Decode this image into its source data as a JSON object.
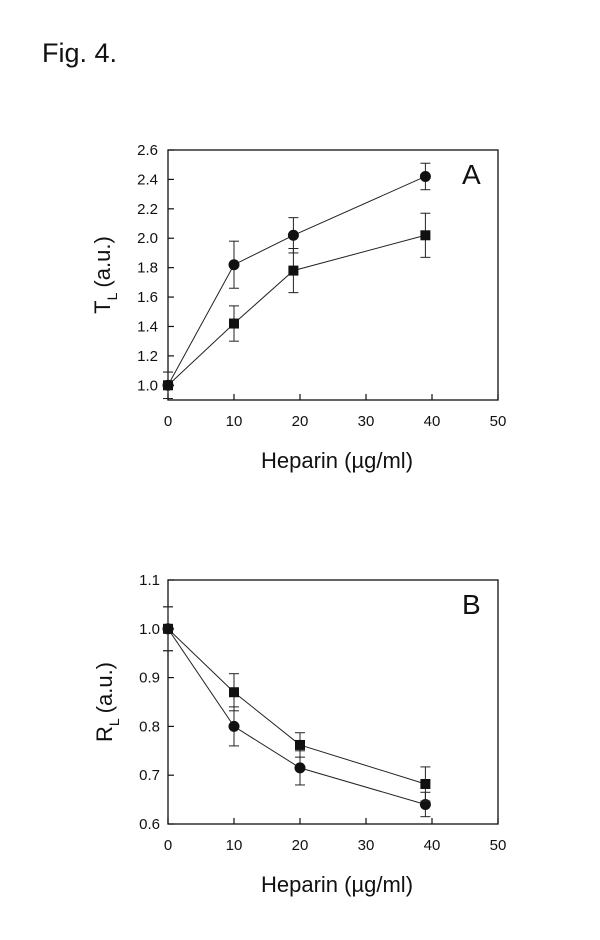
{
  "figure_title": "Fig. 4.",
  "chart_data": [
    {
      "type": "line",
      "panel_label": "A",
      "xlabel": "Heparin (µg/ml)",
      "ylabel_main": "T",
      "ylabel_sub": "L",
      "ylabel_unit": "(a.u.)",
      "xlim": [
        0,
        50
      ],
      "ylim": [
        0.9,
        2.6
      ],
      "x_ticks": [
        "0",
        "10",
        "20",
        "30",
        "40",
        "50"
      ],
      "y_ticks": [
        "1.0",
        "1.2",
        "1.4",
        "1.6",
        "1.8",
        "2.0",
        "2.2",
        "2.4",
        "2.6"
      ],
      "grid": false,
      "series": [
        {
          "name": "circles",
          "marker": "circle",
          "x": [
            0,
            10,
            19,
            39
          ],
          "y": [
            1.0,
            1.82,
            2.02,
            2.42
          ],
          "err": [
            0.09,
            0.16,
            0.12,
            0.09
          ]
        },
        {
          "name": "squares",
          "marker": "square",
          "x": [
            0,
            10,
            19,
            39
          ],
          "y": [
            1.0,
            1.42,
            1.78,
            2.02
          ],
          "err": [
            0.09,
            0.12,
            0.15,
            0.15
          ]
        }
      ]
    },
    {
      "type": "line",
      "panel_label": "B",
      "xlabel": "Heparin (µg/ml)",
      "ylabel_main": "R",
      "ylabel_sub": "L",
      "ylabel_unit": "(a.u.)",
      "xlim": [
        0,
        50
      ],
      "ylim": [
        0.6,
        1.1
      ],
      "x_ticks": [
        "0",
        "10",
        "20",
        "30",
        "40",
        "50"
      ],
      "y_ticks": [
        "0.6",
        "0.7",
        "0.8",
        "0.9",
        "1.0",
        "1.1"
      ],
      "grid": false,
      "series": [
        {
          "name": "circles",
          "marker": "circle",
          "x": [
            0,
            10,
            20,
            39
          ],
          "y": [
            1.0,
            0.8,
            0.715,
            0.64
          ],
          "err": [
            0.045,
            0.04,
            0.035,
            0.025
          ]
        },
        {
          "name": "squares",
          "marker": "square",
          "x": [
            0,
            10,
            20,
            39
          ],
          "y": [
            1.0,
            0.87,
            0.762,
            0.682
          ],
          "err": [
            0.045,
            0.038,
            0.025,
            0.035
          ]
        }
      ]
    }
  ]
}
